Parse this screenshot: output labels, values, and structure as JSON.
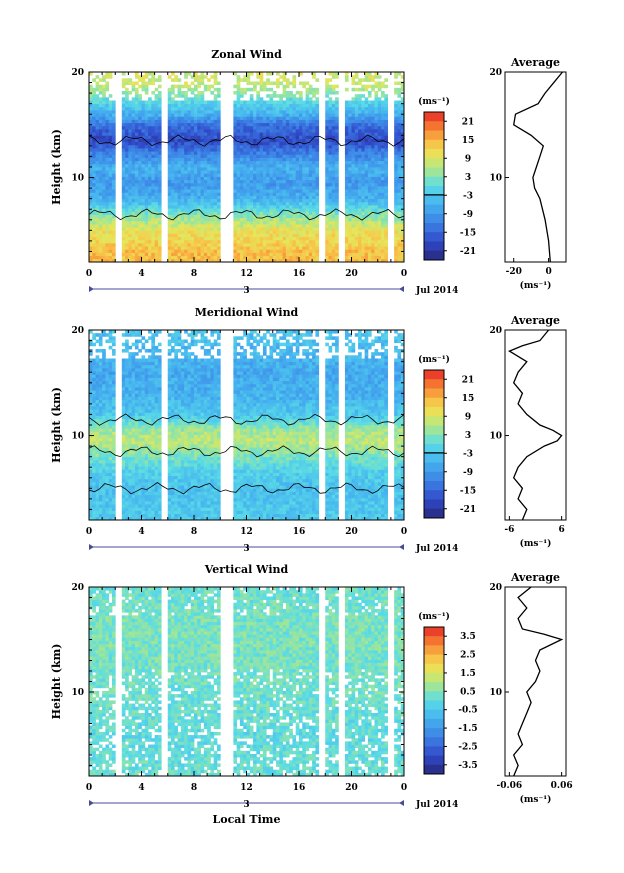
{
  "chart_data": [
    {
      "type": "heatmap",
      "title": "Zonal Wind",
      "ylabel": "Height (km)",
      "xlabel": "",
      "xlim": [
        0,
        24
      ],
      "ylim": [
        2,
        20
      ],
      "xticks": [
        "0",
        "4",
        "8",
        "12",
        "16",
        "20",
        "0"
      ],
      "yticks": [
        "10",
        "20"
      ],
      "date_label": "3",
      "month_label": "Jul 2014",
      "colorbar": {
        "unit_label": "(ms⁻¹)",
        "ticks": [
          "21",
          "15",
          "9",
          "3",
          "-3",
          "-9",
          "-15",
          "-21"
        ],
        "range": [
          -24,
          24
        ]
      },
      "gaps": [
        [
          2.0,
          2.5
        ],
        [
          5.5,
          6.0
        ],
        [
          10.2,
          10.8
        ],
        [
          17.5,
          17.9
        ],
        [
          19.0,
          19.5
        ],
        [
          22.8,
          23.2
        ]
      ],
      "profile_by_height": [
        {
          "h": 3,
          "v": 14
        },
        {
          "h": 5,
          "v": 10
        },
        {
          "h": 6.5,
          "v": 3
        },
        {
          "h": 8,
          "v": -6
        },
        {
          "h": 9.5,
          "v": -9
        },
        {
          "h": 11,
          "v": -6
        },
        {
          "h": 12.5,
          "v": -13
        },
        {
          "h": 13.5,
          "v": -18
        },
        {
          "h": 15,
          "v": -14
        },
        {
          "h": 16,
          "v": -6
        },
        {
          "h": 17,
          "v": -2
        },
        {
          "h": 18,
          "v": 4
        },
        {
          "h": 19,
          "v": 8
        }
      ],
      "average": {
        "title": "Average",
        "xlabel": "(ms⁻¹)",
        "xticks": [
          "-20",
          "0"
        ],
        "xlim": [
          -25,
          10
        ],
        "yticks": [
          "10",
          "20"
        ],
        "heights": [
          2,
          4,
          6,
          8,
          9,
          10,
          11,
          12,
          13,
          14,
          15,
          16,
          17,
          17.5,
          18,
          19,
          20
        ],
        "values": [
          1,
          0,
          -2,
          -5,
          -8,
          -9,
          -7,
          -5,
          -3,
          -10,
          -20,
          -19,
          -6,
          -4,
          -2,
          3,
          8
        ]
      }
    },
    {
      "type": "heatmap",
      "title": "Meridional Wind",
      "ylabel": "Height (km)",
      "xlabel": "",
      "xlim": [
        0,
        24
      ],
      "ylim": [
        2,
        20
      ],
      "xticks": [
        "0",
        "4",
        "8",
        "12",
        "16",
        "20",
        "0"
      ],
      "yticks": [
        "10",
        "20"
      ],
      "date_label": "3",
      "month_label": "Jul 2014",
      "colorbar": {
        "unit_label": "(ms⁻¹)",
        "ticks": [
          "21",
          "15",
          "9",
          "3",
          "-3",
          "-9",
          "-15",
          "-21"
        ],
        "range": [
          -24,
          24
        ]
      },
      "gaps": [
        [
          2.0,
          2.5
        ],
        [
          5.5,
          6.0
        ],
        [
          10.2,
          10.8
        ],
        [
          17.5,
          17.9
        ],
        [
          19.0,
          19.5
        ],
        [
          22.8,
          23.2
        ]
      ],
      "profile_by_height": [
        {
          "h": 3,
          "v": -3
        },
        {
          "h": 5,
          "v": -4
        },
        {
          "h": 6.5,
          "v": -2
        },
        {
          "h": 8,
          "v": 2
        },
        {
          "h": 9.5,
          "v": 7
        },
        {
          "h": 10.5,
          "v": 5
        },
        {
          "h": 12,
          "v": -3
        },
        {
          "h": 14,
          "v": -6
        },
        {
          "h": 16,
          "v": -7
        },
        {
          "h": 18,
          "v": -5
        },
        {
          "h": 19,
          "v": -4
        }
      ],
      "average": {
        "title": "Average",
        "xlabel": "(ms⁻¹)",
        "xticks": [
          "-6",
          "6"
        ],
        "xlim": [
          -7,
          7
        ],
        "yticks": [
          "10",
          "20"
        ],
        "heights": [
          2,
          3,
          4,
          5,
          6,
          7,
          8,
          9,
          9.5,
          10,
          10.5,
          11,
          12,
          13,
          14,
          15,
          16,
          17,
          18,
          18.5,
          19,
          20
        ],
        "values": [
          -3,
          -2,
          -4,
          -3,
          -5,
          -4,
          -2,
          2,
          5,
          6,
          4,
          1,
          -2,
          -4,
          -3,
          -5,
          -4,
          -2,
          -6,
          -3,
          1,
          3
        ]
      }
    },
    {
      "type": "heatmap",
      "title": "Vertical Wind",
      "ylabel": "Height (km)",
      "xlabel": "Local Time",
      "xlim": [
        0,
        24
      ],
      "ylim": [
        2,
        20
      ],
      "xticks": [
        "0",
        "4",
        "8",
        "12",
        "16",
        "20",
        "0"
      ],
      "yticks": [
        "10",
        "20"
      ],
      "date_label": "3",
      "month_label": "Jul 2014",
      "colorbar": {
        "unit_label": "(ms⁻¹)",
        "ticks": [
          "3.5",
          "2.5",
          "1.5",
          "0.5",
          "-0.5",
          "-1.5",
          "-2.5",
          "-3.5"
        ],
        "range": [
          -4,
          4
        ]
      },
      "gaps": [
        [
          2.0,
          2.5
        ],
        [
          5.5,
          6.0
        ],
        [
          10.2,
          10.8
        ],
        [
          17.5,
          17.9
        ],
        [
          19.0,
          19.5
        ],
        [
          22.8,
          23.2
        ]
      ],
      "profile_by_height": [
        {
          "h": 3,
          "v": 0.1
        },
        {
          "h": 6,
          "v": 0.0
        },
        {
          "h": 9,
          "v": 0.2
        },
        {
          "h": 12,
          "v": 0.3
        },
        {
          "h": 15,
          "v": 0.4
        },
        {
          "h": 18,
          "v": 0.3
        },
        {
          "h": 19.5,
          "v": 0.2
        }
      ],
      "average": {
        "title": "Average",
        "xlabel": "(ms⁻¹)",
        "xticks": [
          "-0.06",
          "0.06"
        ],
        "xlim": [
          -0.07,
          0.07
        ],
        "yticks": [
          "10",
          "20"
        ],
        "heights": [
          2,
          3,
          4,
          5,
          6,
          7,
          8,
          9,
          10,
          11,
          12,
          13,
          14,
          15,
          15.5,
          16,
          17,
          18,
          19,
          20
        ],
        "values": [
          -0.05,
          -0.04,
          -0.05,
          -0.03,
          -0.04,
          -0.03,
          -0.02,
          -0.01,
          -0.02,
          0.0,
          0.01,
          0.0,
          0.01,
          0.06,
          0.02,
          -0.03,
          -0.04,
          -0.02,
          -0.04,
          -0.01
        ]
      }
    }
  ]
}
